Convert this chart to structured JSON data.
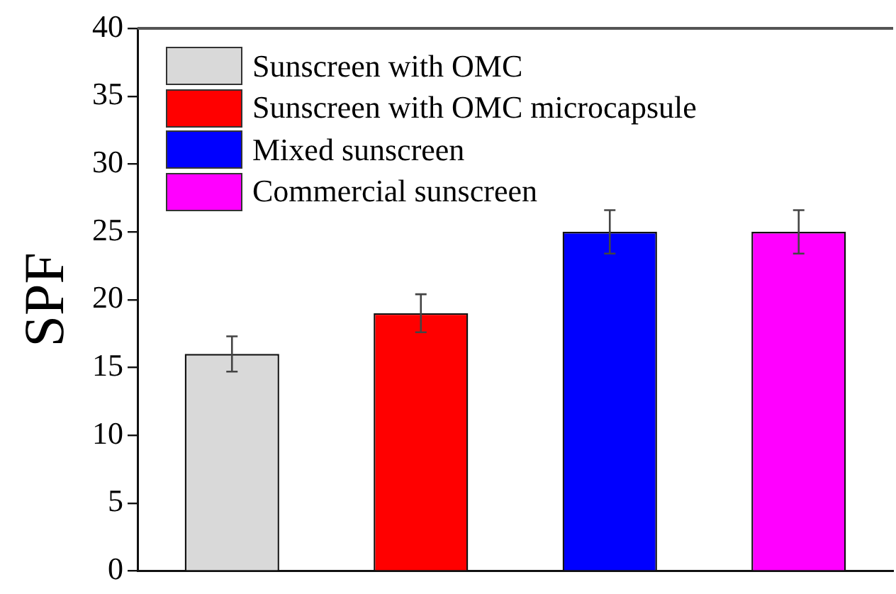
{
  "chart_data": {
    "type": "bar",
    "ylabel": "SPF",
    "categories": [
      null,
      null,
      null,
      null
    ],
    "series": [
      {
        "name": "Sunscreen with OMC",
        "color": "#d9d9d9",
        "values": [
          16,
          null,
          null,
          null
        ],
        "errors": [
          1.3,
          null,
          null,
          null
        ]
      },
      {
        "name": "Sunscreen with OMC microcapsule",
        "color": "#ff0000",
        "values": [
          null,
          19,
          null,
          null
        ],
        "errors": [
          null,
          1.4,
          null,
          null
        ]
      },
      {
        "name": "Mixed sunscreen",
        "color": "#0000ff",
        "values": [
          null,
          null,
          25,
          null
        ],
        "errors": [
          null,
          null,
          1.6,
          null
        ]
      },
      {
        "name": "Commercial sunscreen",
        "color": "#ff00ff",
        "values": [
          null,
          null,
          null,
          25
        ],
        "errors": [
          null,
          null,
          null,
          1.6
        ]
      }
    ],
    "ylim": [
      0,
      40
    ],
    "yticks": [
      0,
      5,
      10,
      15,
      20,
      25,
      30,
      35,
      40
    ],
    "grid": false,
    "legend": "top left"
  }
}
